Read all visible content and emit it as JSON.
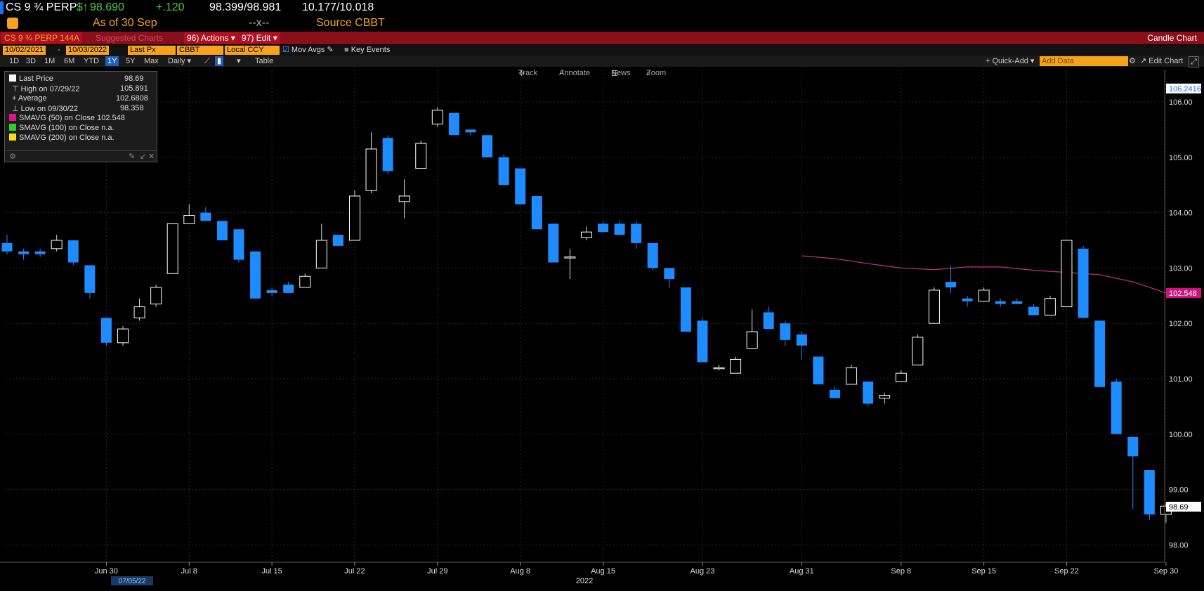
{
  "header": {
    "ticker": "CS 9 ¾ PERP",
    "price_prefix": "$↑",
    "price": "98.690",
    "change": "+.120",
    "bid_ask": "98.399/98.981",
    "yield": "10.177/10.018",
    "as_of": "As of 30 Sep",
    "separator": "--x--",
    "source": "Source CBBT"
  },
  "menubar": {
    "security": "CS 9 ¾ PERP 144A",
    "suggested": "Suggested Charts",
    "actions": "96) Actions ▾",
    "edit": "97) Edit ▾",
    "chart_type": "Candle Chart"
  },
  "params": {
    "start_date": "10/02/2021",
    "end_date": "10/03/2022",
    "field": "Last Px",
    "source": "CBBT",
    "currency": "Local CCY",
    "mov_avgs": "Mov Avgs",
    "key_events": "Key Events"
  },
  "ranges": {
    "buttons": [
      "1D",
      "3D",
      "1M",
      "6M",
      "YTD",
      "1Y",
      "5Y",
      "Max"
    ],
    "selected": "1Y",
    "period": "Daily ▾",
    "table": "Table",
    "quick_add": "+ Quick-Add ▾",
    "add_data_placeholder": "Add Data",
    "edit_chart": "Edit Chart"
  },
  "chart_toolbar": {
    "track": "Track",
    "annotate": "Annotate",
    "news": "News",
    "zoom": "Zoom"
  },
  "legend": {
    "last_price_label": "Last Price",
    "last_price": "98.69",
    "high_label": "High on 07/29/22",
    "high": "105.891",
    "average_label": "Average",
    "average": "102.6808",
    "low_label": "Low on 09/30/22",
    "low": "98.358",
    "sma50_label": "SMAVG (50)  on Close",
    "sma50": "102.548",
    "sma100_label": "SMAVG (100)  on Close",
    "sma100": "n.a.",
    "sma200_label": "SMAVG (200)  on Close",
    "sma200": "n.a.",
    "sma50_color": "#e0148a",
    "sma100_color": "#2bd22b",
    "sma200_color": "#f2e01b"
  },
  "colors": {
    "down_candle": "#1e8bff",
    "up_candle_border": "#ffffff",
    "sma_line": "#b0306f",
    "header_red": "#8b0f1a",
    "amber": "#f7a21a",
    "price_green": "#3fd13f"
  },
  "chart_data": {
    "type": "candlestick",
    "ylim": [
      97.7,
      106.5
    ],
    "y_ticks": [
      "106.00",
      "105.00",
      "104.00",
      "103.00",
      "102.00",
      "101.00",
      "100.00",
      "99.00",
      "98.00"
    ],
    "y_tick_values": [
      106,
      105,
      104,
      103,
      102,
      101,
      100,
      99,
      98
    ],
    "x_ticks": [
      "Jun 30",
      "Jul 8",
      "Jul 15",
      "Jul 22",
      "Jul 29",
      "Aug 8",
      "Aug 15",
      "Aug 23",
      "Aug 31",
      "Sep 8",
      "Sep 15",
      "Sep 22",
      "Sep 30"
    ],
    "x_tick_days": [
      6,
      11,
      16,
      21,
      26,
      31,
      36,
      42,
      48,
      54,
      59,
      64,
      70
    ],
    "year_label": "2022",
    "cursor_date": "07/05/22",
    "labels": {
      "high_marker": "106.2416",
      "sma_last": "102.548",
      "last": "98.69"
    },
    "candles": [
      {
        "o": 103.45,
        "h": 103.6,
        "l": 103.25,
        "c": 103.3
      },
      {
        "o": 103.3,
        "h": 103.35,
        "l": 103.15,
        "c": 103.25
      },
      {
        "o": 103.3,
        "h": 103.35,
        "l": 103.2,
        "c": 103.25
      },
      {
        "o": 103.35,
        "h": 103.6,
        "l": 103.3,
        "c": 103.5
      },
      {
        "o": 103.5,
        "h": 103.5,
        "l": 103.05,
        "c": 103.1
      },
      {
        "o": 103.05,
        "h": 103.05,
        "l": 102.45,
        "c": 102.55
      },
      {
        "o": 102.1,
        "h": 102.1,
        "l": 101.6,
        "c": 101.65
      },
      {
        "o": 101.65,
        "h": 101.95,
        "l": 101.6,
        "c": 101.9
      },
      {
        "o": 102.1,
        "h": 102.45,
        "l": 102.05,
        "c": 102.3
      },
      {
        "o": 102.35,
        "h": 102.7,
        "l": 102.3,
        "c": 102.65
      },
      {
        "o": 102.9,
        "h": 103.8,
        "l": 102.9,
        "c": 103.8
      },
      {
        "o": 103.8,
        "h": 104.15,
        "l": 103.8,
        "c": 103.95
      },
      {
        "o": 104.0,
        "h": 104.1,
        "l": 103.85,
        "c": 103.85
      },
      {
        "o": 103.85,
        "h": 103.85,
        "l": 103.5,
        "c": 103.5
      },
      {
        "o": 103.7,
        "h": 103.7,
        "l": 103.1,
        "c": 103.15
      },
      {
        "o": 103.3,
        "h": 103.3,
        "l": 102.45,
        "c": 102.45
      },
      {
        "o": 102.6,
        "h": 102.65,
        "l": 102.5,
        "c": 102.55
      },
      {
        "o": 102.7,
        "h": 102.75,
        "l": 102.55,
        "c": 102.55
      },
      {
        "o": 102.65,
        "h": 102.9,
        "l": 102.65,
        "c": 102.85
      },
      {
        "o": 103.0,
        "h": 103.8,
        "l": 103.0,
        "c": 103.5
      },
      {
        "o": 103.6,
        "h": 103.6,
        "l": 103.4,
        "c": 103.4
      },
      {
        "o": 103.5,
        "h": 104.4,
        "l": 103.5,
        "c": 104.3
      },
      {
        "o": 104.4,
        "h": 105.45,
        "l": 104.35,
        "c": 105.15
      },
      {
        "o": 105.35,
        "h": 105.4,
        "l": 104.7,
        "c": 104.75
      },
      {
        "o": 104.2,
        "h": 104.6,
        "l": 103.9,
        "c": 104.3
      },
      {
        "o": 104.8,
        "h": 105.3,
        "l": 104.8,
        "c": 105.25
      },
      {
        "o": 105.6,
        "h": 105.9,
        "l": 105.55,
        "c": 105.85
      },
      {
        "o": 105.8,
        "h": 105.8,
        "l": 105.4,
        "c": 105.4
      },
      {
        "o": 105.5,
        "h": 105.5,
        "l": 105.4,
        "c": 105.45
      },
      {
        "o": 105.4,
        "h": 105.4,
        "l": 105.0,
        "c": 105.0
      },
      {
        "o": 105.0,
        "h": 105.05,
        "l": 104.5,
        "c": 104.5
      },
      {
        "o": 104.8,
        "h": 104.8,
        "l": 104.15,
        "c": 104.15
      },
      {
        "o": 104.3,
        "h": 104.3,
        "l": 103.7,
        "c": 103.7
      },
      {
        "o": 103.8,
        "h": 103.8,
        "l": 103.1,
        "c": 103.1
      },
      {
        "o": 103.2,
        "h": 103.35,
        "l": 102.8,
        "c": 103.2
      },
      {
        "o": 103.55,
        "h": 103.75,
        "l": 103.5,
        "c": 103.65
      },
      {
        "o": 103.8,
        "h": 103.85,
        "l": 103.65,
        "c": 103.65
      },
      {
        "o": 103.8,
        "h": 103.85,
        "l": 103.6,
        "c": 103.6
      },
      {
        "o": 103.8,
        "h": 103.85,
        "l": 103.35,
        "c": 103.45
      },
      {
        "o": 103.45,
        "h": 103.45,
        "l": 102.95,
        "c": 103.0
      },
      {
        "o": 103.0,
        "h": 103.0,
        "l": 102.65,
        "c": 102.8
      },
      {
        "o": 102.65,
        "h": 102.65,
        "l": 101.85,
        "c": 101.85
      },
      {
        "o": 102.05,
        "h": 102.1,
        "l": 101.3,
        "c": 101.3
      },
      {
        "o": 101.2,
        "h": 101.25,
        "l": 101.15,
        "c": 101.2
      },
      {
        "o": 101.1,
        "h": 101.4,
        "l": 101.1,
        "c": 101.35
      },
      {
        "o": 101.55,
        "h": 102.25,
        "l": 101.55,
        "c": 101.85
      },
      {
        "o": 102.2,
        "h": 102.3,
        "l": 101.9,
        "c": 101.9
      },
      {
        "o": 102.0,
        "h": 102.05,
        "l": 101.6,
        "c": 101.7
      },
      {
        "o": 101.8,
        "h": 101.85,
        "l": 101.35,
        "c": 101.6
      },
      {
        "o": 101.4,
        "h": 101.4,
        "l": 100.9,
        "c": 100.9
      },
      {
        "o": 100.8,
        "h": 100.85,
        "l": 100.65,
        "c": 100.65
      },
      {
        "o": 100.9,
        "h": 101.25,
        "l": 100.9,
        "c": 101.2
      },
      {
        "o": 100.95,
        "h": 100.95,
        "l": 100.5,
        "c": 100.55
      },
      {
        "o": 100.65,
        "h": 100.75,
        "l": 100.55,
        "c": 100.7
      },
      {
        "o": 100.95,
        "h": 101.15,
        "l": 100.95,
        "c": 101.1
      },
      {
        "o": 101.25,
        "h": 101.8,
        "l": 101.25,
        "c": 101.75
      },
      {
        "o": 102.0,
        "h": 102.65,
        "l": 102.0,
        "c": 102.6
      },
      {
        "o": 102.75,
        "h": 103.05,
        "l": 102.55,
        "c": 102.65
      },
      {
        "o": 102.45,
        "h": 102.5,
        "l": 102.3,
        "c": 102.4
      },
      {
        "o": 102.4,
        "h": 102.65,
        "l": 102.4,
        "c": 102.6
      },
      {
        "o": 102.4,
        "h": 102.45,
        "l": 102.3,
        "c": 102.35
      },
      {
        "o": 102.4,
        "h": 102.45,
        "l": 102.35,
        "c": 102.35
      },
      {
        "o": 102.3,
        "h": 102.35,
        "l": 102.15,
        "c": 102.15
      },
      {
        "o": 102.15,
        "h": 102.5,
        "l": 102.15,
        "c": 102.45
      },
      {
        "o": 102.3,
        "h": 103.5,
        "l": 102.3,
        "c": 103.5
      },
      {
        "o": 103.35,
        "h": 103.4,
        "l": 102.1,
        "c": 102.1
      },
      {
        "o": 102.05,
        "h": 102.05,
        "l": 100.85,
        "c": 100.85
      },
      {
        "o": 100.95,
        "h": 101.0,
        "l": 100.0,
        "c": 100.0
      },
      {
        "o": 99.95,
        "h": 99.95,
        "l": 98.65,
        "c": 99.6
      },
      {
        "o": 99.35,
        "h": 99.35,
        "l": 98.45,
        "c": 98.55
      },
      {
        "o": 98.55,
        "h": 98.75,
        "l": 98.4,
        "c": 98.7
      }
    ],
    "sma50": [
      {
        "d": 48,
        "v": 103.22
      },
      {
        "d": 50,
        "v": 103.17
      },
      {
        "d": 52,
        "v": 103.08
      },
      {
        "d": 54,
        "v": 103.0
      },
      {
        "d": 56,
        "v": 102.97
      },
      {
        "d": 58,
        "v": 103.02
      },
      {
        "d": 60,
        "v": 103.02
      },
      {
        "d": 62,
        "v": 102.96
      },
      {
        "d": 64,
        "v": 102.92
      },
      {
        "d": 66,
        "v": 102.88
      },
      {
        "d": 68,
        "v": 102.75
      },
      {
        "d": 70,
        "v": 102.55
      }
    ]
  }
}
